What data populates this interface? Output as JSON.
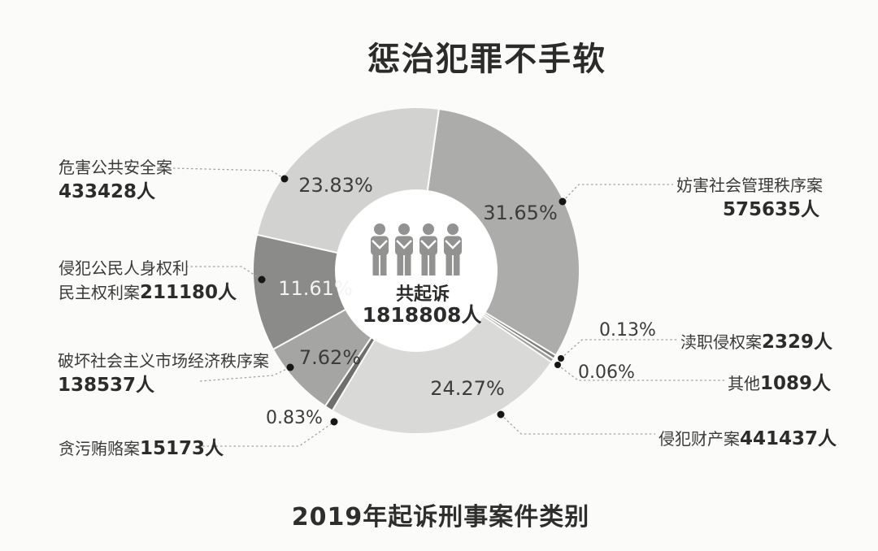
{
  "page": {
    "background": "#fbfbf9",
    "title": "惩治犯罪不手软",
    "caption": "2019年起诉刑事案件类别"
  },
  "center": {
    "icon": "people-group-icon",
    "label": "共起诉",
    "value": "1818808人"
  },
  "chart_data": {
    "type": "pie",
    "variant": "donut",
    "title": "惩治犯罪不手软",
    "subtitle": "2019年起诉刑事案件类别",
    "total": {
      "label": "共起诉",
      "value": 1818808,
      "unit": "人"
    },
    "start_angle_deg_from_top": 8,
    "direction": "clockwise",
    "legend_position": "callouts",
    "segments": [
      {
        "name": "妨害社会管理秩序案",
        "people": 575635,
        "pct": 31.65,
        "pct_label": "31.65%",
        "people_label": "575635人",
        "color": "#acacab",
        "pct_label_color": "#3c3c3b"
      },
      {
        "name": "渎职侵权案",
        "people": 2329,
        "pct": 0.13,
        "pct_label": "0.13%",
        "people_label": "2329人",
        "color": "#7b7b7a",
        "pct_label_color": "#3c3c3b"
      },
      {
        "name": "其他",
        "people": 1089,
        "pct": 0.06,
        "pct_label": "0.06%",
        "people_label": "1089人",
        "color": "#9d9d9c",
        "pct_label_color": "#3c3c3b"
      },
      {
        "name": "侵犯财产案",
        "people": 441437,
        "pct": 24.27,
        "pct_label": "24.27%",
        "people_label": "441437人",
        "color": "#d9d9d8",
        "pct_label_color": "#3c3c3b"
      },
      {
        "name": "贪污贿赂案",
        "people": 15173,
        "pct": 0.83,
        "pct_label": "0.83%",
        "people_label": "15173人",
        "color": "#6f6f6e",
        "pct_label_color": "#3c3c3b"
      },
      {
        "name": "破坏社会主义市场经济秩序案",
        "people": 138537,
        "pct": 7.62,
        "pct_label": "7.62%",
        "people_label": "138537人",
        "color": "#a5a5a4",
        "pct_label_color": "#3c3c3b"
      },
      {
        "name": "侵犯公民人身权利民主权利案",
        "people": 211180,
        "pct": 11.61,
        "pct_label": "11.61%",
        "people_label": "211180人",
        "color": "#8b8b8a",
        "pct_label_color": "#f3f3f2"
      },
      {
        "name": "危害公共安全案",
        "people": 433428,
        "pct": 23.83,
        "pct_label": "23.83%",
        "people_label": "433428人",
        "color": "#d2d2d1",
        "pct_label_color": "#3c3c3b"
      }
    ]
  },
  "callouts": {
    "weihai": {
      "line1": "危害公共安全案",
      "line2_value": "433428人"
    },
    "qinfan_gongmin": {
      "line1": "侵犯公民人身权利",
      "line2_prefix": "民主权利案",
      "line2_value": "211180人"
    },
    "pohuai": {
      "line1": "破坏社会主义市场经济秩序案",
      "line2_value": "138537人"
    },
    "tanwu": {
      "prefix": "贪污贿赂案",
      "value": "15173人",
      "pct": "0.83%"
    },
    "fanghai": {
      "line1": "妨害社会管理秩序案",
      "line2_value": "575635人"
    },
    "duzhi": {
      "prefix": "渎职侵权案",
      "value": "2329人",
      "pct": "0.13%"
    },
    "qita": {
      "prefix": "其他",
      "value": "1089人",
      "pct": "0.06%"
    },
    "qinfan_caichan": {
      "prefix": "侵犯财产案",
      "value": "441437人"
    }
  }
}
